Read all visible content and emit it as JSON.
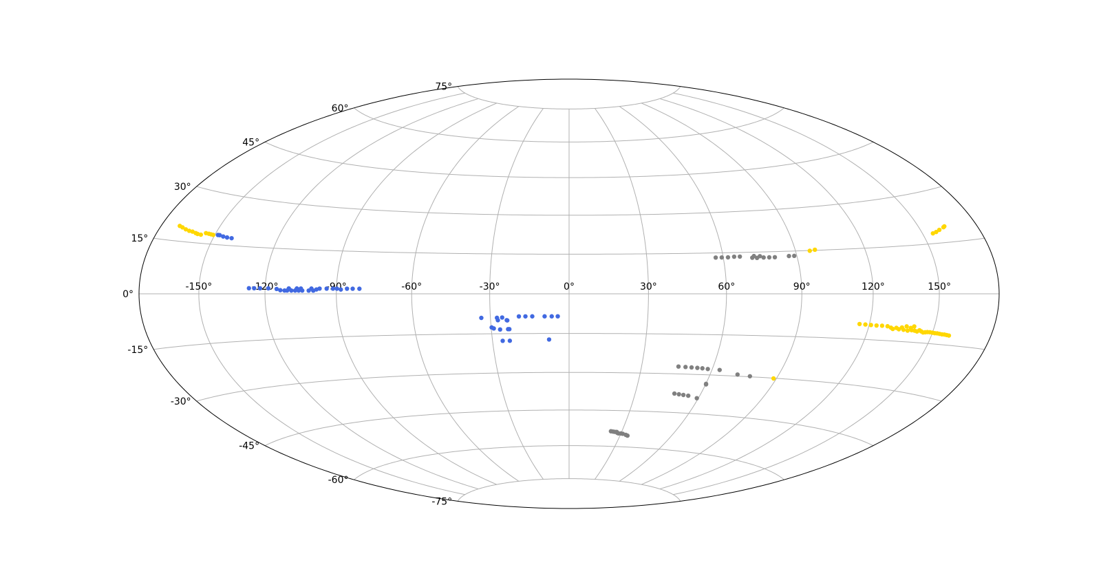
{
  "chart_data": {
    "type": "scatter",
    "projection": "hammer",
    "x_unit": "degrees longitude",
    "y_unit": "degrees latitude",
    "xlim": [
      -180,
      180
    ],
    "ylim": [
      -90,
      90
    ],
    "grid": true,
    "longitude_tick_labels": [
      {
        "value": -150,
        "label": "-150°"
      },
      {
        "value": -120,
        "label": "-120°"
      },
      {
        "value": -90,
        "label": "-90°"
      },
      {
        "value": -60,
        "label": "-60°"
      },
      {
        "value": -30,
        "label": "-30°"
      },
      {
        "value": 0,
        "label": "0°"
      },
      {
        "value": 30,
        "label": "30°"
      },
      {
        "value": 60,
        "label": "60°"
      },
      {
        "value": 90,
        "label": "90°"
      },
      {
        "value": 120,
        "label": "120°"
      },
      {
        "value": 150,
        "label": "150°"
      }
    ],
    "latitude_tick_labels": [
      {
        "value": 75,
        "label": "75°"
      },
      {
        "value": 60,
        "label": "60°"
      },
      {
        "value": 45,
        "label": "45°"
      },
      {
        "value": 30,
        "label": "30°"
      },
      {
        "value": 15,
        "label": "15°"
      },
      {
        "value": 0,
        "label": "0°"
      },
      {
        "value": -15,
        "label": "-15°"
      },
      {
        "value": -30,
        "label": "-30°"
      },
      {
        "value": -45,
        "label": "-45°"
      },
      {
        "value": -60,
        "label": "-60°"
      },
      {
        "value": -75,
        "label": "-75°"
      }
    ],
    "series": [
      {
        "color": "#FFD700",
        "points": [
          [
            -170.2,
            19.2
          ],
          [
            -168.3,
            18.9
          ],
          [
            -166.0,
            18.5
          ],
          [
            -163.8,
            18.2
          ],
          [
            -161.9,
            18.1
          ],
          [
            -159.9,
            17.8
          ],
          [
            -158.7,
            17.6
          ],
          [
            -156.9,
            17.5
          ],
          [
            -154.8,
            18.1
          ],
          [
            -153.2,
            18.0
          ],
          [
            -152.0,
            17.9
          ],
          [
            -150.8,
            17.8
          ],
          [
            155.1,
            18.0
          ],
          [
            157.1,
            18.3
          ],
          [
            159.3,
            18.8
          ],
          [
            162.2,
            19.4
          ],
          [
            162.9,
            19.6
          ],
          [
            96.0,
            14.9
          ],
          [
            98.3,
            15.2
          ],
          [
            115.7,
            -10.0
          ],
          [
            118.3,
            -10.1
          ],
          [
            120.8,
            -10.2
          ],
          [
            123.3,
            -10.3
          ],
          [
            125.8,
            -10.3
          ],
          [
            128.3,
            -10.4
          ],
          [
            130.0,
            -10.8
          ],
          [
            131.0,
            -11.2
          ],
          [
            132.5,
            -10.8
          ],
          [
            133.8,
            -11.2
          ],
          [
            135.0,
            -10.6
          ],
          [
            136.0,
            -11.3
          ],
          [
            137.0,
            -10.2
          ],
          [
            138.0,
            -11.5
          ],
          [
            139.1,
            -10.6
          ],
          [
            139.8,
            -11.3
          ],
          [
            140.5,
            -10.1
          ],
          [
            141.3,
            -11.4
          ],
          [
            142.5,
            -11.6
          ],
          [
            143.5,
            -11.2
          ],
          [
            144.5,
            -11.5
          ],
          [
            145.5,
            -11.8
          ],
          [
            146.5,
            -11.7
          ],
          [
            147.5,
            -11.6
          ],
          [
            148.7,
            -11.6
          ],
          [
            150.0,
            -11.7
          ],
          [
            151.2,
            -11.8
          ],
          [
            152.4,
            -11.8
          ],
          [
            153.6,
            -11.9
          ],
          [
            154.9,
            -12.0
          ],
          [
            156.1,
            -12.0
          ],
          [
            157.3,
            -12.1
          ],
          [
            158.5,
            -12.2
          ],
          [
            88.7,
            -30.1
          ]
        ]
      },
      {
        "color": "#4169E1",
        "points": [
          [
            -148.5,
            17.9
          ],
          [
            -147.6,
            17.9
          ],
          [
            -145.6,
            17.6
          ],
          [
            -143.5,
            17.4
          ],
          [
            -141.2,
            17.3
          ],
          [
            -127.1,
            1.8
          ],
          [
            -124.8,
            1.8
          ],
          [
            -122.2,
            1.8
          ],
          [
            -118.6,
            1.8
          ],
          [
            -115.0,
            1.6
          ],
          [
            -113.4,
            1.2
          ],
          [
            -111.6,
            1.1
          ],
          [
            -110.5,
            1.1
          ],
          [
            -109.8,
            1.8
          ],
          [
            -108.7,
            1.1
          ],
          [
            -107.1,
            1.1
          ],
          [
            -106.4,
            1.8
          ],
          [
            -105.6,
            1.1
          ],
          [
            -104.7,
            1.8
          ],
          [
            -104.1,
            1.1
          ],
          [
            -101.4,
            1.1
          ],
          [
            -100.3,
            1.8
          ],
          [
            -99.5,
            1.1
          ],
          [
            -98.2,
            1.5
          ],
          [
            -96.9,
            1.8
          ],
          [
            -94.0,
            1.8
          ],
          [
            -91.4,
            1.8
          ],
          [
            -89.8,
            1.8
          ],
          [
            -88.2,
            1.5
          ],
          [
            -85.7,
            1.8
          ],
          [
            -83.4,
            1.8
          ],
          [
            -80.7,
            1.8
          ],
          [
            -33.5,
            -9.0
          ],
          [
            -27.5,
            -9.0
          ],
          [
            -25.5,
            -8.9
          ],
          [
            -19.1,
            -8.5
          ],
          [
            -16.6,
            -8.5
          ],
          [
            -14.0,
            -8.5
          ],
          [
            -9.3,
            -8.5
          ],
          [
            -6.6,
            -8.5
          ],
          [
            -4.3,
            -8.5
          ],
          [
            -27.2,
            -9.9
          ],
          [
            -23.8,
            -9.9
          ],
          [
            -23.6,
            -10.0
          ],
          [
            -29.8,
            -12.6
          ],
          [
            -29.0,
            -13.0
          ],
          [
            -26.6,
            -13.4
          ],
          [
            -23.5,
            -13.3
          ],
          [
            -23.0,
            -13.3
          ],
          [
            -26.0,
            -17.7
          ],
          [
            -23.2,
            -17.7
          ],
          [
            -7.8,
            -17.3
          ]
        ]
      },
      {
        "color": "#808080",
        "points": [
          [
            57.0,
            13.3
          ],
          [
            59.4,
            13.3
          ],
          [
            61.9,
            13.3
          ],
          [
            64.4,
            13.5
          ],
          [
            66.7,
            13.5
          ],
          [
            71.6,
            13.0
          ],
          [
            72.4,
            13.6
          ],
          [
            73.5,
            12.9
          ],
          [
            74.8,
            13.5
          ],
          [
            76.2,
            13.0
          ],
          [
            78.5,
            13.0
          ],
          [
            80.8,
            13.0
          ],
          [
            86.7,
            13.3
          ],
          [
            88.9,
            13.3
          ],
          [
            45.4,
            -27.2
          ],
          [
            48.4,
            -27.3
          ],
          [
            51.0,
            -27.4
          ],
          [
            53.5,
            -27.5
          ],
          [
            55.7,
            -27.6
          ],
          [
            58.1,
            -27.8
          ],
          [
            63.3,
            -28.0
          ],
          [
            71.9,
            -29.4
          ],
          [
            77.7,
            -29.8
          ],
          [
            60.1,
            -33.4
          ],
          [
            60.2,
            -33.6
          ],
          [
            47.9,
            -37.6
          ],
          [
            50.1,
            -37.8
          ],
          [
            52.3,
            -38.0
          ],
          [
            54.7,
            -38.2
          ],
          [
            59.3,
            -39.0
          ],
          [
            23.8,
            -53.6
          ],
          [
            25.0,
            -53.7
          ],
          [
            26.0,
            -53.8
          ],
          [
            27.2,
            -53.8
          ],
          [
            27.8,
            -54.2
          ],
          [
            28.6,
            -54.4
          ],
          [
            30.0,
            -54.4
          ],
          [
            31.1,
            -54.5
          ],
          [
            33.2,
            -54.9
          ],
          [
            34.4,
            -55.2
          ]
        ]
      }
    ]
  }
}
